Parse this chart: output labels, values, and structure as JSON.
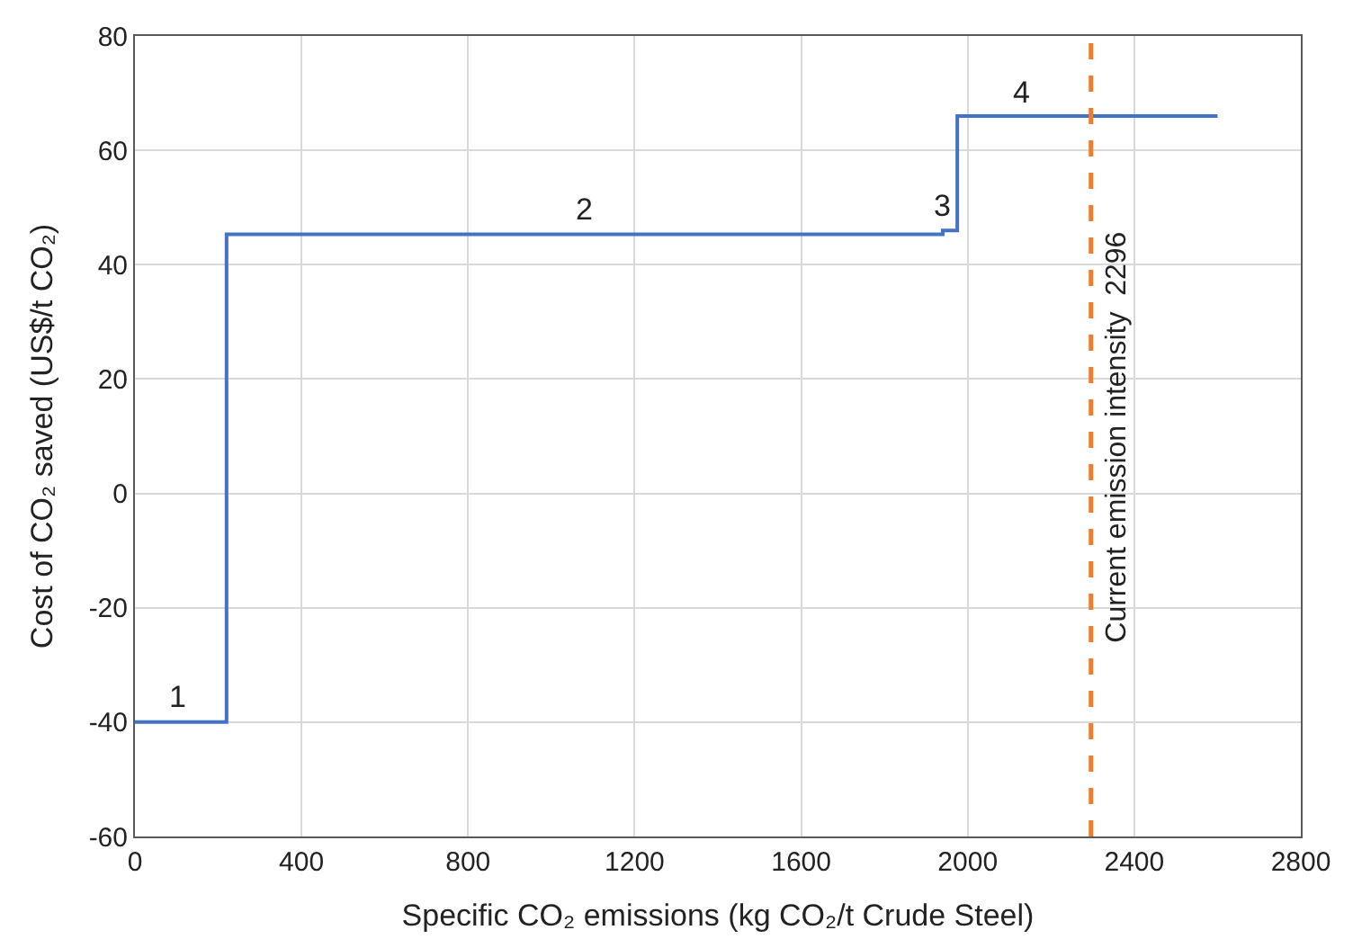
{
  "chart_data": {
    "type": "step",
    "xlabel": "Specific CO₂ emissions (kg CO₂/t Crude Steel)",
    "ylabel": "Cost of CO₂ saved (US$/t CO₂)",
    "x": [
      0,
      220,
      1940,
      1975,
      2600
    ],
    "series": [
      {
        "color": "#4472c4",
        "values": [
          -40,
          45.3,
          46,
          66,
          66
        ]
      }
    ],
    "xlim": [
      0,
      2800
    ],
    "xticks": [
      0,
      400,
      800,
      1200,
      1600,
      2000,
      2400,
      2800
    ],
    "ylim": [
      -60,
      80
    ],
    "yticks": [
      -60,
      -40,
      -20,
      0,
      20,
      40,
      60,
      80
    ],
    "grid": true,
    "marker": "none",
    "line_style": "solid",
    "ref_lines": [
      {
        "axis": "x",
        "value": 2296,
        "label": "Current emission intensity  2296",
        "color": "#ed7d31",
        "line_style": "dashed"
      }
    ],
    "annotations": [
      {
        "text": "1",
        "x": 100,
        "y": -40
      },
      {
        "text": "2",
        "x": 1080,
        "y": 45.3
      },
      {
        "text": "3",
        "x": 1940,
        "y": 46
      },
      {
        "text": "4",
        "x": 2130,
        "y": 66
      }
    ]
  }
}
